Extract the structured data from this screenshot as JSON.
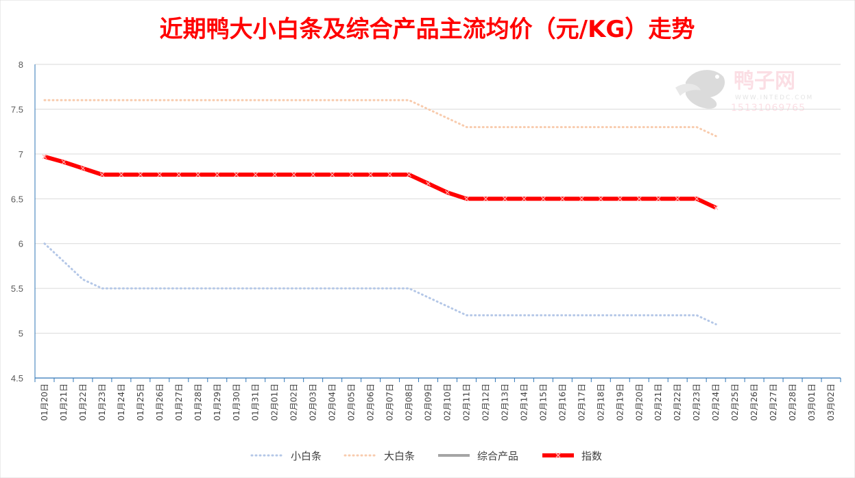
{
  "chart_data": {
    "type": "line",
    "title": "近期鸭大小白条及综合产品主流均价（元/KG）走势",
    "ylim": [
      4.5,
      8
    ],
    "yticks": [
      "4.5",
      "5",
      "5.5",
      "6",
      "6.5",
      "7",
      "7.5",
      "8"
    ],
    "grid": "horizontal",
    "legend_position": "bottom",
    "categories": [
      "01月20日",
      "01月21日",
      "01月22日",
      "01月23日",
      "01月24日",
      "01月25日",
      "01月26日",
      "01月27日",
      "01月28日",
      "01月29日",
      "01月30日",
      "01月31日",
      "02月01日",
      "02月02日",
      "02月03日",
      "02月04日",
      "02月05日",
      "02月06日",
      "02月07日",
      "02月08日",
      "02月09日",
      "02月10日",
      "02月11日",
      "02月12日",
      "02月13日",
      "02月14日",
      "02月15日",
      "02月16日",
      "02月17日",
      "02月18日",
      "02月19日",
      "02月20日",
      "02月21日",
      "02月22日",
      "02月23日",
      "02月24日",
      "02月25日",
      "02月26日",
      "02月27日",
      "02月28日",
      "03月01日",
      "03月02日"
    ],
    "series": [
      {
        "name": "小白条",
        "color": "#b4c7e7",
        "style": "dotted",
        "values": [
          6.0,
          5.8,
          5.6,
          5.5,
          5.5,
          5.5,
          5.5,
          5.5,
          5.5,
          5.5,
          5.5,
          5.5,
          5.5,
          5.5,
          5.5,
          5.5,
          5.5,
          5.5,
          5.5,
          5.5,
          5.4,
          5.3,
          5.2,
          5.2,
          5.2,
          5.2,
          5.2,
          5.2,
          5.2,
          5.2,
          5.2,
          5.2,
          5.2,
          5.2,
          5.2,
          5.1,
          null,
          null,
          null,
          null,
          null,
          null
        ]
      },
      {
        "name": "大白条",
        "color": "#f8cbad",
        "style": "dotted",
        "values": [
          7.6,
          7.6,
          7.6,
          7.6,
          7.6,
          7.6,
          7.6,
          7.6,
          7.6,
          7.6,
          7.6,
          7.6,
          7.6,
          7.6,
          7.6,
          7.6,
          7.6,
          7.6,
          7.6,
          7.6,
          7.5,
          7.4,
          7.3,
          7.3,
          7.3,
          7.3,
          7.3,
          7.3,
          7.3,
          7.3,
          7.3,
          7.3,
          7.3,
          7.3,
          7.3,
          7.2,
          null,
          null,
          null,
          null,
          null,
          null
        ]
      },
      {
        "name": "综合产品",
        "color": "#a5a5a5",
        "style": "solid",
        "values": [
          null,
          null,
          null,
          null,
          null,
          null,
          null,
          null,
          null,
          null,
          null,
          null,
          null,
          null,
          null,
          null,
          null,
          null,
          null,
          null,
          null,
          null,
          null,
          null,
          null,
          null,
          null,
          null,
          null,
          null,
          null,
          null,
          null,
          null,
          null,
          null,
          null,
          null,
          null,
          null,
          null,
          null
        ]
      },
      {
        "name": "指数",
        "color": "#ff0000",
        "style": "thick-marker",
        "values": [
          6.97,
          6.91,
          6.84,
          6.77,
          6.77,
          6.77,
          6.77,
          6.77,
          6.77,
          6.77,
          6.77,
          6.77,
          6.77,
          6.77,
          6.77,
          6.77,
          6.77,
          6.77,
          6.77,
          6.77,
          6.67,
          6.57,
          6.5,
          6.5,
          6.5,
          6.5,
          6.5,
          6.5,
          6.5,
          6.5,
          6.5,
          6.5,
          6.5,
          6.5,
          6.5,
          6.4,
          null,
          null,
          null,
          null,
          null,
          null
        ]
      }
    ]
  },
  "watermark": {
    "brand": "鸭子网",
    "site": "WWW.INTEDC.COM",
    "phone": "15131069765"
  },
  "colors": {
    "title": "#ff0000",
    "axis": "#2e75b6",
    "grid": "#d9d9d9"
  }
}
